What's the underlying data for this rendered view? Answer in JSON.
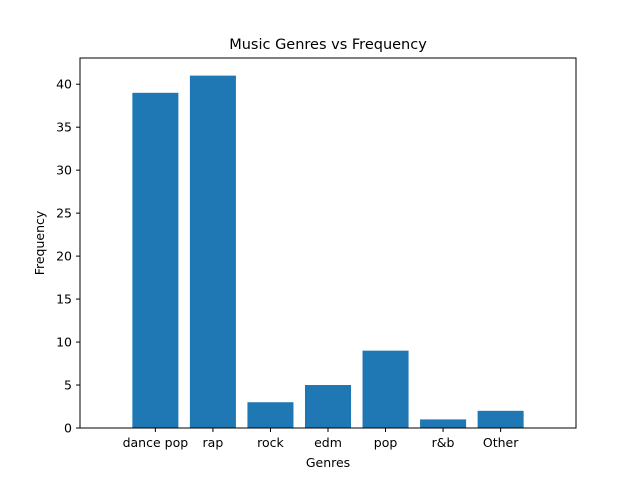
{
  "chart_data": {
    "type": "bar",
    "title": "Music Genres vs Frequency",
    "xlabel": "Genres",
    "ylabel": "Frequency",
    "categories": [
      "dance pop",
      "rap",
      "rock",
      "edm",
      "pop",
      "r&b",
      "Other"
    ],
    "values": [
      39,
      41,
      3,
      5,
      9,
      1,
      2
    ],
    "ylim": [
      0,
      43.05
    ],
    "yticks": [
      0,
      5,
      10,
      15,
      20,
      25,
      30,
      35,
      40
    ],
    "grid": false,
    "legend": "none",
    "bar_color": "#1f77b4"
  }
}
